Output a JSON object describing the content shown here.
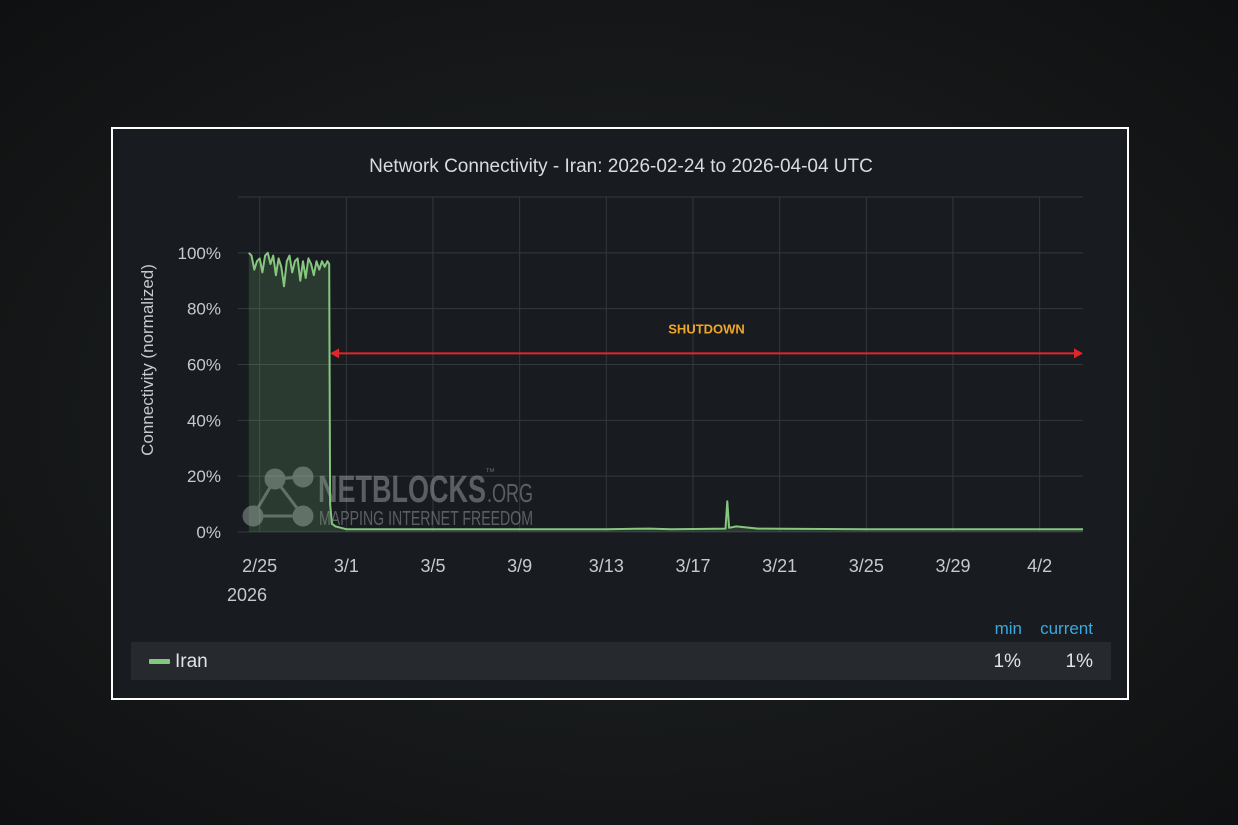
{
  "chart_data": {
    "type": "area",
    "title": "Network Connectivity - Iran: 2026-02-24 to 2026-04-04 UTC",
    "ylabel": "Connectivity (normalized)",
    "xlabel": "",
    "x_range": [
      "2026-02-24",
      "2026-04-04"
    ],
    "ylim": [
      0,
      1.2
    ],
    "y_ticks": [
      "0%",
      "20%",
      "40%",
      "60%",
      "80%",
      "100%"
    ],
    "x_ticks": [
      {
        "date": "2026-02-25",
        "label": "2/25"
      },
      {
        "date": "2026-03-01",
        "label": "3/1"
      },
      {
        "date": "2026-03-05",
        "label": "3/5"
      },
      {
        "date": "2026-03-09",
        "label": "3/9"
      },
      {
        "date": "2026-03-13",
        "label": "3/13"
      },
      {
        "date": "2026-03-17",
        "label": "3/17"
      },
      {
        "date": "2026-03-21",
        "label": "3/21"
      },
      {
        "date": "2026-03-25",
        "label": "3/25"
      },
      {
        "date": "2026-03-29",
        "label": "3/29"
      },
      {
        "date": "2026-04-02",
        "label": "4/2"
      }
    ],
    "x_year_label": "2026",
    "grid": true,
    "series": [
      {
        "name": "Iran",
        "color": "#86c77f",
        "points": [
          [
            "2026-02-24T12:00",
            1.0
          ],
          [
            "2026-02-24T15:00",
            0.99
          ],
          [
            "2026-02-24T18:00",
            0.94
          ],
          [
            "2026-02-24T21:00",
            0.97
          ],
          [
            "2026-02-25T00:00",
            0.98
          ],
          [
            "2026-02-25T03:00",
            0.93
          ],
          [
            "2026-02-25T06:00",
            0.99
          ],
          [
            "2026-02-25T09:00",
            1.0
          ],
          [
            "2026-02-25T12:00",
            0.96
          ],
          [
            "2026-02-25T15:00",
            0.99
          ],
          [
            "2026-02-25T18:00",
            0.92
          ],
          [
            "2026-02-25T21:00",
            0.98
          ],
          [
            "2026-02-26T00:00",
            0.95
          ],
          [
            "2026-02-26T03:00",
            0.88
          ],
          [
            "2026-02-26T06:00",
            0.97
          ],
          [
            "2026-02-26T09:00",
            0.99
          ],
          [
            "2026-02-26T12:00",
            0.93
          ],
          [
            "2026-02-26T15:00",
            0.97
          ],
          [
            "2026-02-26T18:00",
            0.98
          ],
          [
            "2026-02-26T21:00",
            0.9
          ],
          [
            "2026-02-27T00:00",
            0.97
          ],
          [
            "2026-02-27T03:00",
            0.91
          ],
          [
            "2026-02-27T06:00",
            0.98
          ],
          [
            "2026-02-27T09:00",
            0.96
          ],
          [
            "2026-02-27T12:00",
            0.92
          ],
          [
            "2026-02-27T15:00",
            0.97
          ],
          [
            "2026-02-27T18:00",
            0.94
          ],
          [
            "2026-02-27T21:00",
            0.97
          ],
          [
            "2026-02-28T00:00",
            0.95
          ],
          [
            "2026-02-28T03:00",
            0.97
          ],
          [
            "2026-02-28T05:00",
            0.96
          ],
          [
            "2026-02-28T06:00",
            0.1
          ],
          [
            "2026-02-28T08:00",
            0.03
          ],
          [
            "2026-02-28T12:00",
            0.02
          ],
          [
            "2026-02-28T18:00",
            0.015
          ],
          [
            "2026-03-01T00:00",
            0.01
          ],
          [
            "2026-03-05T00:00",
            0.01
          ],
          [
            "2026-03-09T00:00",
            0.01
          ],
          [
            "2026-03-13T00:00",
            0.01
          ],
          [
            "2026-03-15T00:00",
            0.012
          ],
          [
            "2026-03-16T00:00",
            0.01
          ],
          [
            "2026-03-18T12:00",
            0.012
          ],
          [
            "2026-03-18T14:00",
            0.11
          ],
          [
            "2026-03-18T16:00",
            0.015
          ],
          [
            "2026-03-19T00:00",
            0.02
          ],
          [
            "2026-03-20T00:00",
            0.012
          ],
          [
            "2026-03-25T00:00",
            0.01
          ],
          [
            "2026-03-29T00:00",
            0.01
          ],
          [
            "2026-04-02T00:00",
            0.01
          ],
          [
            "2026-04-04T00:00",
            0.01
          ]
        ]
      }
    ],
    "annotations": [
      {
        "text": "SHUTDOWN",
        "color": "#f0a52b",
        "from": "2026-02-28T06:00",
        "to": "2026-04-04T00:00",
        "y": 0.64,
        "arrow_color": "#e0262a"
      }
    ],
    "legend_placement": "bottom"
  },
  "legend": {
    "headers": {
      "min": "min",
      "current": "current"
    },
    "rows": [
      {
        "name": "Iran",
        "min": "1%",
        "current": "1%"
      }
    ]
  },
  "watermark": {
    "brand": "NETBLOCKS",
    "suffix": ".ORG",
    "tm": "™",
    "tagline": "MAPPING INTERNET FREEDOM"
  }
}
